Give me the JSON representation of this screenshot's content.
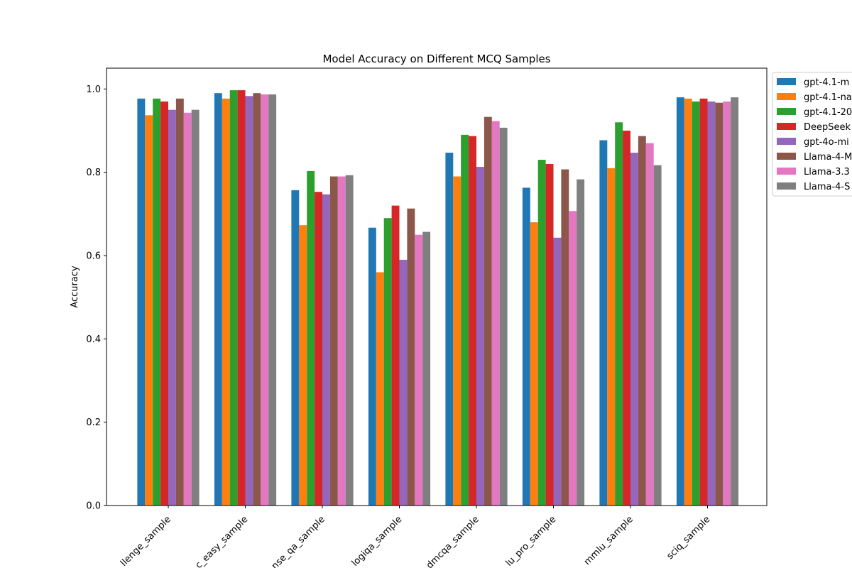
{
  "chart_data": {
    "type": "bar",
    "title": "Model Accuracy on Different MCQ Samples",
    "xlabel": "",
    "ylabel": "Accuracy",
    "ylim": [
      0,
      1.05
    ],
    "yticks": [
      "0.0",
      "0.2",
      "0.4",
      "0.6",
      "0.8",
      "1.0"
    ],
    "grid": false,
    "legend_position": "outside-right-top",
    "categories": [
      "arc_challenge_sample",
      "arc_easy_sample",
      "commonsense_qa_sample",
      "logiqa_sample",
      "medmcqa_sample",
      "mmlu_pro_sample",
      "mmlu_sample",
      "sciq_sample"
    ],
    "visible_category_labels": [
      "llenge_sample",
      "c_easy_sample",
      "nse_qa_sample",
      "logiqa_sample",
      "dmcqa_sample",
      "lu_pro_sample",
      "mmlu_sample",
      "sciq_sample"
    ],
    "series": [
      {
        "name": "gpt-4.1-m",
        "color": "#1f77b4",
        "values": [
          0.977,
          0.99,
          0.757,
          0.667,
          0.847,
          0.763,
          0.877,
          0.98
        ]
      },
      {
        "name": "gpt-4.1-na",
        "color": "#ff7f0e",
        "values": [
          0.937,
          0.977,
          0.673,
          0.56,
          0.79,
          0.68,
          0.81,
          0.977
        ]
      },
      {
        "name": "gpt-4.1-20",
        "color": "#2ca02c",
        "values": [
          0.977,
          0.997,
          0.803,
          0.69,
          0.89,
          0.83,
          0.92,
          0.97
        ]
      },
      {
        "name": "DeepSeek",
        "color": "#d62728",
        "values": [
          0.97,
          0.997,
          0.753,
          0.72,
          0.887,
          0.82,
          0.9,
          0.977
        ]
      },
      {
        "name": "gpt-4o-mi",
        "color": "#9467bd",
        "values": [
          0.95,
          0.983,
          0.747,
          0.59,
          0.813,
          0.643,
          0.847,
          0.97
        ]
      },
      {
        "name": "Llama-4-M",
        "color": "#8c564b",
        "values": [
          0.977,
          0.99,
          0.79,
          0.713,
          0.933,
          0.807,
          0.887,
          0.967
        ]
      },
      {
        "name": "Llama-3.3",
        "color": "#e377c2",
        "values": [
          0.943,
          0.987,
          0.79,
          0.65,
          0.923,
          0.707,
          0.87,
          0.97
        ]
      },
      {
        "name": "Llama-4-S",
        "color": "#7f7f7f",
        "values": [
          0.95,
          0.987,
          0.793,
          0.657,
          0.907,
          0.783,
          0.817,
          0.98
        ]
      }
    ]
  }
}
